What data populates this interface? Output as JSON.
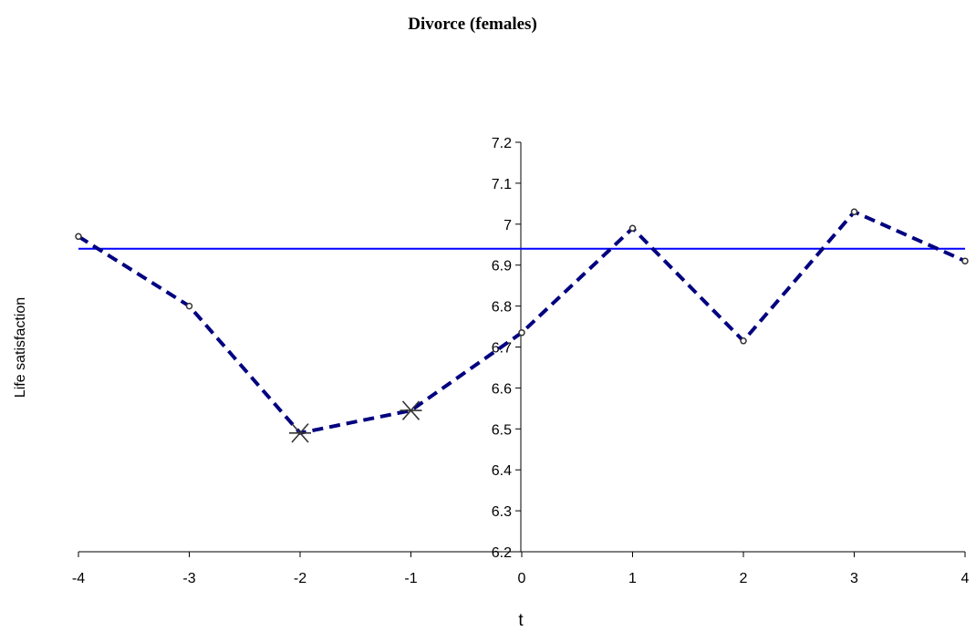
{
  "chart_data": {
    "type": "line",
    "title": "Divorce (females)",
    "xlabel": "t",
    "ylabel": "Life satisfaction",
    "x": [
      -4,
      -3,
      -2,
      -1,
      0,
      1,
      2,
      3,
      4
    ],
    "xticks": [
      "-4",
      "-3",
      "-2",
      "-1",
      "0",
      "1",
      "2",
      "3",
      "4"
    ],
    "yticks": [
      "6.2",
      "6.3",
      "6.4",
      "6.5",
      "6.6",
      "6.7",
      "6.8",
      "6.9",
      "7",
      "7.1",
      "7.2"
    ],
    "ylim": [
      6.2,
      7.2
    ],
    "xlim": [
      -4,
      4
    ],
    "grid": false,
    "legend": "none",
    "series": [
      {
        "style": "dashed",
        "color": "#000080",
        "values": [
          6.97,
          6.8,
          6.49,
          6.545,
          6.735,
          6.99,
          6.715,
          7.03,
          6.91
        ],
        "markers": [
          "dot",
          "dot",
          "star",
          "star",
          "dot",
          "dot",
          "dot",
          "dot",
          "dot"
        ]
      }
    ],
    "reference_line": {
      "y": 6.94,
      "color": "#0000ff"
    }
  }
}
